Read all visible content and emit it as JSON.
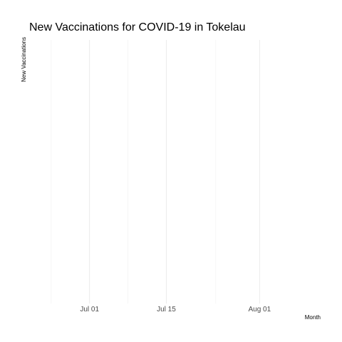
{
  "chart_data": {
    "type": "line",
    "title": "New Vaccinations for COVID-19 in Tokelau",
    "xlabel": "Month",
    "ylabel": "New Vaccinations",
    "x_axis": {
      "scale": "date",
      "range": [
        "2021-06-20",
        "2021-08-12"
      ],
      "ticks": [
        {
          "value": "2021-07-01",
          "label": "Jul 01"
        },
        {
          "value": "2021-07-15",
          "label": "Jul 15"
        },
        {
          "value": "2021-08-01",
          "label": "Aug 01"
        }
      ],
      "minor_ticks": [
        "2021-06-24",
        "2021-07-08",
        "2021-07-24"
      ]
    },
    "y_axis": {
      "ticks": []
    },
    "grid": true,
    "legend": "none",
    "series": [
      {
        "values": []
      }
    ],
    "colors": {
      "grid_major": "#ebebeb",
      "grid_minor": "#f4f4f4",
      "tick_text": "#4d4d4d",
      "title_text": "#000000"
    }
  }
}
